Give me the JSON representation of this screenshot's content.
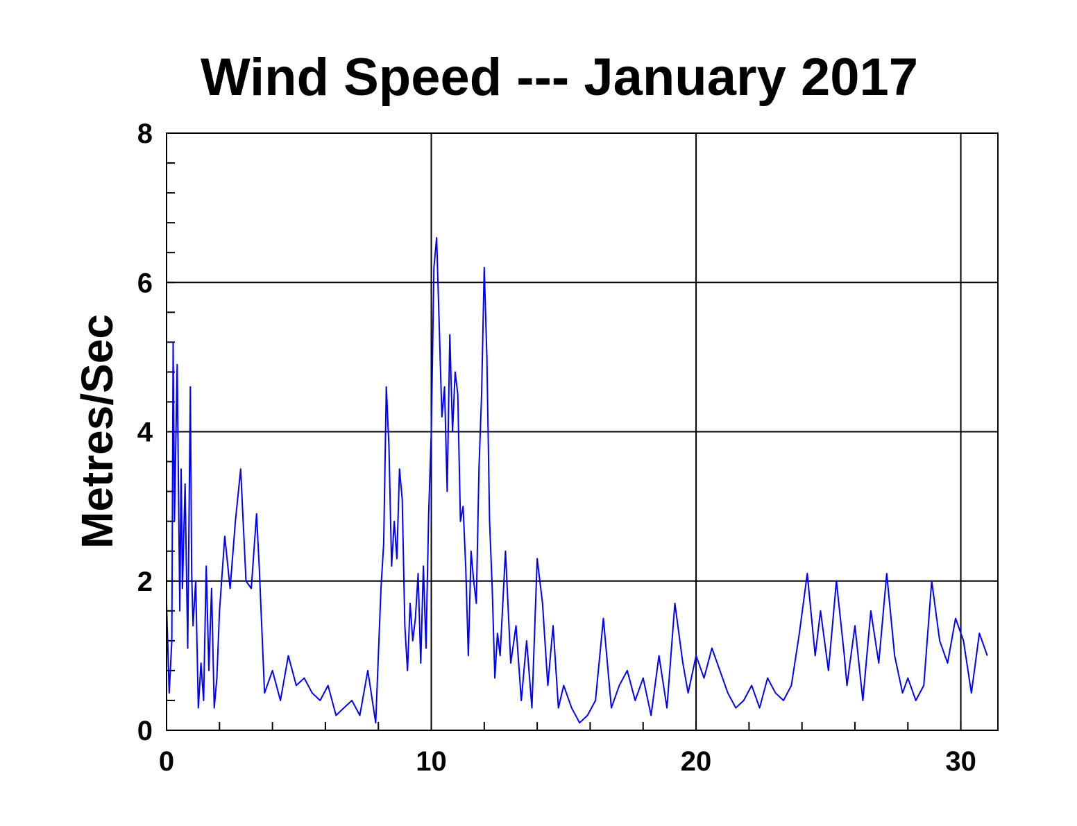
{
  "chart_data": {
    "type": "line",
    "title": "Wind Speed --- January 2017",
    "xlabel": "",
    "ylabel": "Metres/Sec",
    "xlim": [
      0,
      31.4
    ],
    "ylim": [
      0,
      8
    ],
    "x_ticks": [
      "0",
      "10",
      "20",
      "30"
    ],
    "y_ticks": [
      "0",
      "2",
      "4",
      "6",
      "8"
    ],
    "grid": true,
    "legend": "none",
    "series": [
      {
        "color": "#0000ff",
        "x": [
          0.0,
          0.1,
          0.2,
          0.25,
          0.3,
          0.4,
          0.5,
          0.55,
          0.6,
          0.7,
          0.8,
          0.9,
          0.95,
          1.0,
          1.1,
          1.2,
          1.3,
          1.4,
          1.5,
          1.6,
          1.7,
          1.8,
          1.9,
          2.0,
          2.2,
          2.4,
          2.6,
          2.8,
          3.0,
          3.2,
          3.4,
          3.5,
          3.7,
          4.0,
          4.3,
          4.6,
          4.9,
          5.2,
          5.5,
          5.8,
          6.1,
          6.4,
          6.7,
          7.0,
          7.3,
          7.6,
          7.9,
          8.1,
          8.2,
          8.3,
          8.4,
          8.5,
          8.6,
          8.7,
          8.8,
          8.9,
          9.0,
          9.1,
          9.2,
          9.3,
          9.4,
          9.5,
          9.6,
          9.7,
          9.8,
          9.9,
          10.0,
          10.1,
          10.2,
          10.3,
          10.4,
          10.5,
          10.6,
          10.7,
          10.8,
          10.9,
          11.0,
          11.1,
          11.2,
          11.3,
          11.4,
          11.5,
          11.6,
          11.7,
          11.8,
          11.9,
          12.0,
          12.1,
          12.2,
          12.3,
          12.4,
          12.5,
          12.6,
          12.8,
          13.0,
          13.2,
          13.4,
          13.6,
          13.8,
          14.0,
          14.2,
          14.4,
          14.6,
          14.8,
          15.0,
          15.3,
          15.6,
          15.9,
          16.2,
          16.5,
          16.8,
          17.1,
          17.4,
          17.7,
          18.0,
          18.3,
          18.6,
          18.9,
          19.2,
          19.5,
          19.7,
          20.0,
          20.3,
          20.6,
          20.9,
          21.2,
          21.5,
          21.8,
          22.1,
          22.4,
          22.7,
          23.0,
          23.3,
          23.6,
          23.9,
          24.2,
          24.5,
          24.7,
          25.0,
          25.3,
          25.6,
          25.7,
          26.0,
          26.3,
          26.6,
          26.9,
          27.2,
          27.5,
          27.8,
          28.0,
          28.3,
          28.6,
          28.9,
          29.2,
          29.5,
          29.8,
          30.1,
          30.4,
          30.7,
          31.0
        ],
        "y": [
          1.7,
          0.5,
          1.2,
          5.2,
          2.8,
          4.9,
          1.6,
          3.5,
          1.9,
          3.3,
          1.1,
          4.6,
          2.1,
          1.4,
          2.0,
          0.3,
          0.9,
          0.4,
          2.2,
          0.8,
          1.9,
          0.3,
          0.7,
          1.6,
          2.6,
          1.9,
          2.8,
          3.5,
          2.0,
          1.9,
          2.9,
          2.2,
          0.5,
          0.8,
          0.4,
          1.0,
          0.6,
          0.7,
          0.5,
          0.4,
          0.6,
          0.2,
          0.3,
          0.4,
          0.2,
          0.8,
          0.1,
          1.9,
          2.5,
          4.6,
          3.8,
          2.2,
          2.8,
          2.3,
          3.5,
          3.1,
          1.4,
          0.8,
          1.7,
          1.2,
          1.5,
          2.1,
          0.9,
          2.2,
          1.1,
          2.9,
          4.0,
          6.2,
          6.6,
          5.4,
          4.2,
          4.6,
          3.2,
          5.3,
          4.0,
          4.8,
          4.5,
          2.8,
          3.0,
          2.2,
          1.0,
          2.4,
          2.0,
          1.7,
          3.5,
          4.5,
          6.2,
          5.0,
          2.8,
          1.9,
          0.7,
          1.3,
          1.0,
          2.4,
          0.9,
          1.4,
          0.4,
          1.2,
          0.3,
          2.3,
          1.7,
          0.6,
          1.4,
          0.3,
          0.6,
          0.3,
          0.1,
          0.2,
          0.4,
          1.5,
          0.3,
          0.6,
          0.8,
          0.4,
          0.7,
          0.2,
          1.0,
          0.3,
          1.7,
          0.9,
          0.5,
          1.0,
          0.7,
          1.1,
          0.8,
          0.5,
          0.3,
          0.4,
          0.6,
          0.3,
          0.7,
          0.5,
          0.4,
          0.6,
          1.3,
          2.1,
          1.0,
          1.6,
          0.8,
          2.0,
          1.0,
          0.6,
          1.4,
          0.4,
          1.6,
          0.9,
          2.1,
          1.0,
          0.5,
          0.7,
          0.4,
          0.6,
          2.0,
          1.2,
          0.9,
          1.5,
          1.2,
          0.5,
          1.3,
          1.0
        ]
      }
    ]
  }
}
